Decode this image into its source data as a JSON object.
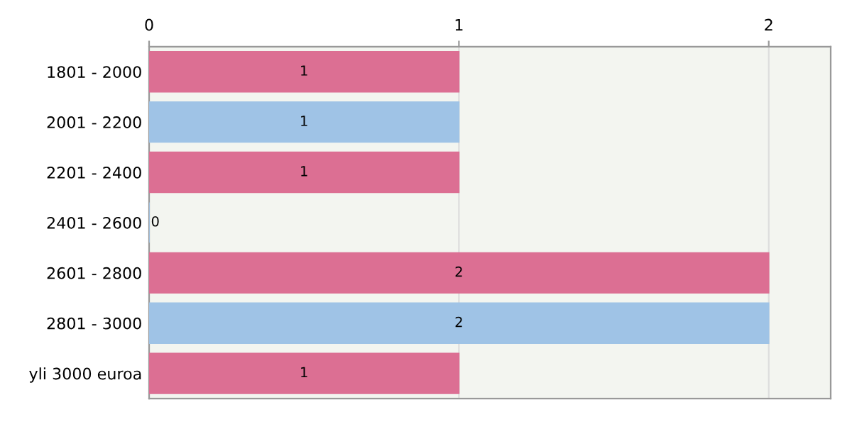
{
  "chart_data": {
    "type": "bar",
    "orientation": "horizontal",
    "categories": [
      "1801 - 2000",
      "2001 - 2200",
      "2201 - 2400",
      "2401 - 2600",
      "2601 - 2800",
      "2801 - 3000",
      "yli 3000 euroa"
    ],
    "values": [
      1,
      1,
      1,
      0,
      2,
      2,
      1
    ],
    "colors": [
      "#dc6f93",
      "#9fc3e6",
      "#dc6f93",
      "#9fc3e6",
      "#dc6f93",
      "#9fc3e6",
      "#dc6f93"
    ],
    "xlim": [
      0,
      2.2
    ],
    "xticks": [
      0,
      1,
      2
    ],
    "grid": "x",
    "data_labels": true
  }
}
